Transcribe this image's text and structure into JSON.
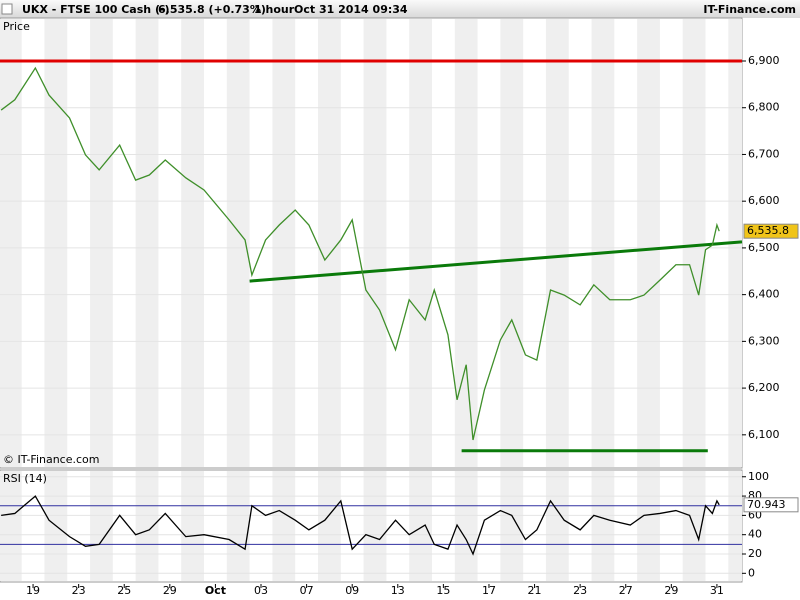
{
  "header": {
    "symbol": "UKX - FTSE 100 Cash (-)",
    "quote": "6,535.8 (+0.73%)",
    "interval": "1 hour",
    "timestamp": "Oct 31 2014 09:34",
    "brand": "IT-Finance.com"
  },
  "chart_data": [
    {
      "type": "line",
      "title": "Price",
      "copyright": "© IT-Finance.com",
      "color": "#3f8f2a",
      "x": [
        -1.4,
        -0.8,
        0.1,
        0.7,
        1.6,
        2.3,
        2.9,
        3.8,
        4.5,
        5.1,
        5.8,
        6.7,
        7.5,
        8.6,
        9.3,
        9.6,
        10.2,
        10.8,
        11.5,
        12.1,
        12.8,
        13.5,
        14.0,
        14.6,
        15.2,
        15.9,
        16.5,
        17.2,
        17.6,
        18.2,
        18.6,
        19.0,
        19.3,
        19.8,
        20.5,
        21.0,
        21.6,
        22.1,
        22.7,
        23.3,
        24.0,
        24.6,
        25.3,
        26.2,
        26.8,
        27.5,
        28.2,
        28.8,
        29.2,
        29.5,
        29.8,
        30.0,
        30.1
      ],
      "values": [
        6795,
        6817,
        6885,
        6827,
        6778,
        6699,
        6667,
        6720,
        6645,
        6656,
        6688,
        6650,
        6624,
        6560,
        6517,
        6442,
        6517,
        6549,
        6581,
        6549,
        6474,
        6517,
        6560,
        6410,
        6367,
        6282,
        6389,
        6346,
        6410,
        6314,
        6175,
        6250,
        6089,
        6196,
        6303,
        6346,
        6271,
        6260,
        6410,
        6399,
        6378,
        6421,
        6389,
        6389,
        6399,
        6431,
        6464,
        6464,
        6399,
        6496,
        6506,
        6549,
        6535.8
      ],
      "last_value": 6535.8,
      "last_label": "6,535.8",
      "last_color": "#f0c419",
      "lines": [
        {
          "color": "#e00000",
          "x": [
            -1.45,
            31.1
          ],
          "y": [
            6900,
            6900
          ]
        },
        {
          "color": "#0a7a0a",
          "x": [
            9.5,
            31.1
          ],
          "y": [
            6429,
            6513
          ]
        },
        {
          "color": "#0a7a0a",
          "x": [
            18.8,
            29.6
          ],
          "y": [
            6066,
            6066
          ]
        }
      ],
      "xlim": [
        -1.45,
        31.1
      ],
      "ylim": [
        6029,
        6992
      ],
      "yticks": [
        {
          "value": 6100,
          "label": "6,100"
        },
        {
          "value": 6200,
          "label": "6,200"
        },
        {
          "value": 6300,
          "label": "6,300"
        },
        {
          "value": 6400,
          "label": "6,400"
        },
        {
          "value": 6500,
          "label": "6,500"
        },
        {
          "value": 6600,
          "label": "6,600"
        },
        {
          "value": 6700,
          "label": "6,700"
        },
        {
          "value": 6800,
          "label": "6,800"
        },
        {
          "value": 6900,
          "label": "6,900"
        }
      ],
      "xticks": [
        {
          "value": 0,
          "label": "19"
        },
        {
          "value": 2,
          "label": "23"
        },
        {
          "value": 4,
          "label": "25"
        },
        {
          "value": 6,
          "label": "29"
        },
        {
          "value": 8,
          "label": "Oct"
        },
        {
          "value": 10,
          "label": "03"
        },
        {
          "value": 12,
          "label": "07"
        },
        {
          "value": 14,
          "label": "09"
        },
        {
          "value": 16,
          "label": "13"
        },
        {
          "value": 18,
          "label": "15"
        },
        {
          "value": 20,
          "label": "17"
        },
        {
          "value": 22,
          "label": "21"
        },
        {
          "value": 24,
          "label": "23"
        },
        {
          "value": 26,
          "label": "27"
        },
        {
          "value": 28,
          "label": "29"
        },
        {
          "value": 30,
          "label": "31"
        }
      ]
    },
    {
      "type": "line",
      "title": "RSI (14)",
      "color": "#000000",
      "x": [
        -1.4,
        -0.8,
        0.1,
        0.7,
        1.6,
        2.3,
        2.9,
        3.8,
        4.5,
        5.1,
        5.8,
        6.7,
        7.5,
        8.6,
        9.3,
        9.6,
        10.2,
        10.8,
        11.5,
        12.1,
        12.8,
        13.5,
        14.0,
        14.6,
        15.2,
        15.9,
        16.5,
        17.2,
        17.6,
        18.2,
        18.6,
        19.0,
        19.3,
        19.8,
        20.5,
        21.0,
        21.6,
        22.1,
        22.7,
        23.3,
        24.0,
        24.6,
        25.3,
        26.2,
        26.8,
        27.5,
        28.2,
        28.8,
        29.2,
        29.5,
        29.8,
        30.0,
        30.1
      ],
      "values": [
        60,
        62,
        80,
        55,
        38,
        28,
        30,
        60,
        40,
        45,
        62,
        38,
        40,
        35,
        25,
        70,
        60,
        65,
        55,
        45,
        55,
        75,
        25,
        40,
        35,
        55,
        40,
        50,
        30,
        25,
        50,
        35,
        20,
        55,
        65,
        60,
        35,
        45,
        75,
        55,
        45,
        60,
        55,
        50,
        60,
        62,
        65,
        60,
        35,
        70,
        62,
        75,
        70.943
      ],
      "last_value": 70.943,
      "levels": [
        30,
        70
      ],
      "level_color": "#3030a0",
      "xlim": [
        -1.45,
        31.1
      ],
      "ylim": [
        -9,
        107
      ],
      "yticks": [
        0,
        20,
        40,
        60,
        80,
        100
      ]
    }
  ]
}
